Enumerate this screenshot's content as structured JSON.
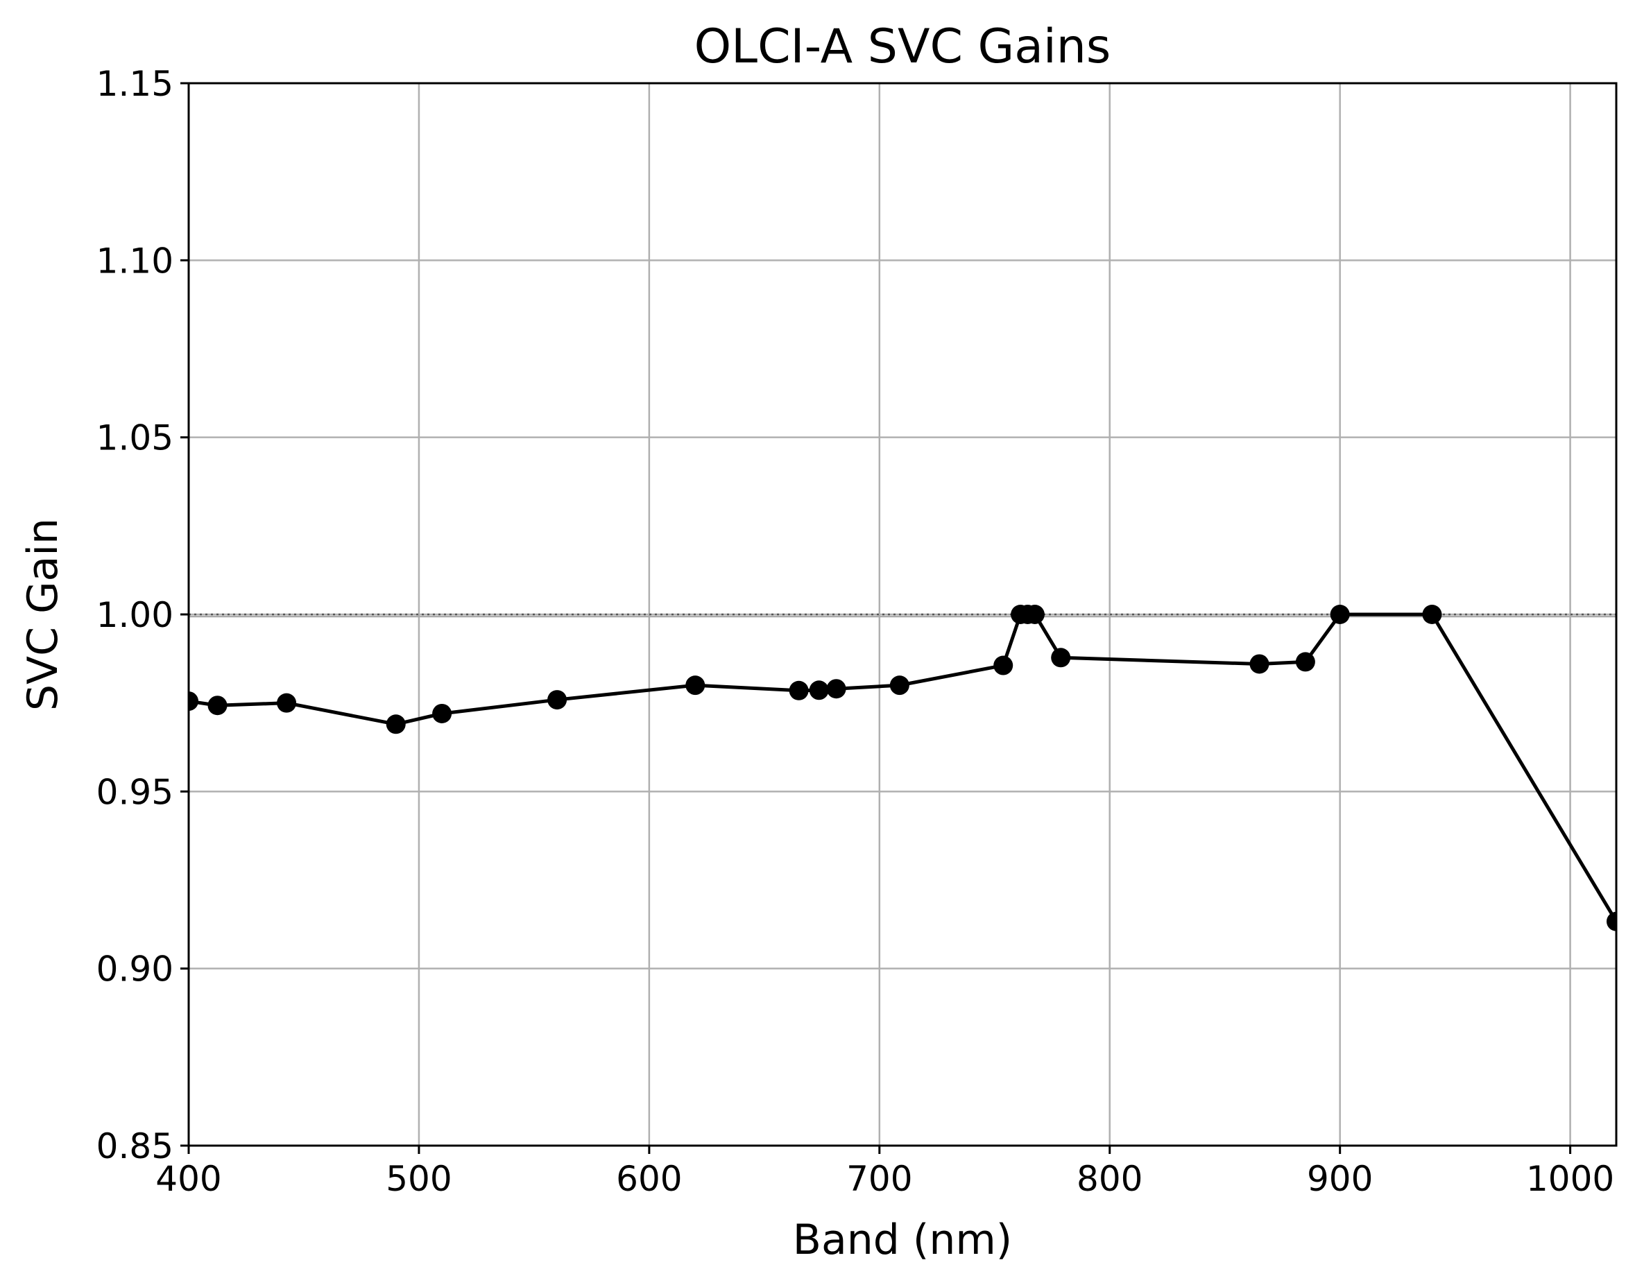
{
  "chart_data": {
    "type": "line",
    "title": "OLCI-A SVC Gains",
    "xlabel": "Band (nm)",
    "ylabel": "SVC Gain",
    "xlim": [
      400,
      1020
    ],
    "ylim": [
      0.85,
      1.15
    ],
    "xticks": [
      400,
      500,
      600,
      700,
      800,
      900,
      1000
    ],
    "xtick_labels": [
      "400",
      "500",
      "600",
      "700",
      "800",
      "900",
      "1000"
    ],
    "yticks": [
      0.85,
      0.9,
      0.95,
      1.0,
      1.05,
      1.1,
      1.15
    ],
    "ytick_labels": [
      "0.85",
      "0.90",
      "0.95",
      "1.00",
      "1.05",
      "1.10",
      "1.15"
    ],
    "grid": true,
    "reference_lines": [
      {
        "y": 1.0,
        "style": "solid",
        "color": "#aaaaaa"
      },
      {
        "y": 1.0,
        "style": "dotted",
        "color": "#555555"
      }
    ],
    "series": [
      {
        "color": "#000000",
        "marker": "circle",
        "x": [
          400,
          412.5,
          442.5,
          490,
          510,
          560,
          620,
          665,
          673.75,
          681.25,
          708.75,
          753.75,
          761.25,
          764.375,
          767.5,
          778.75,
          865,
          885,
          900,
          940,
          1020
        ],
        "y": [
          0.9755,
          0.9743,
          0.975,
          0.969,
          0.972,
          0.9759,
          0.98,
          0.9785,
          0.9786,
          0.979,
          0.98,
          0.9856,
          1.0,
          1.0,
          1.0,
          0.9878,
          0.986,
          0.9866,
          1.0,
          1.0,
          0.9133
        ]
      }
    ]
  }
}
